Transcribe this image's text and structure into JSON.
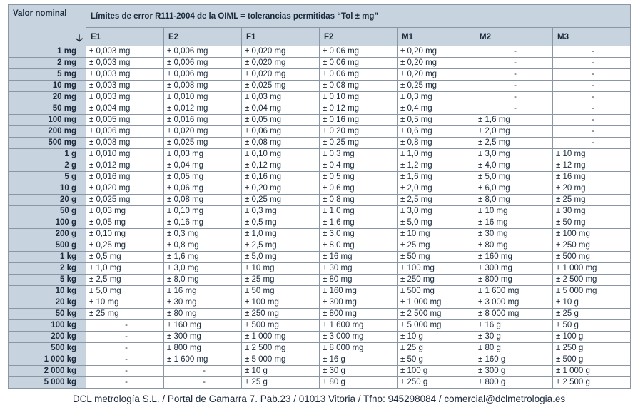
{
  "header": {
    "nominal_label": "Valor nominal",
    "title": "Límites de error R111-2004 de la OIML = tolerancias permitidas “Tol ± mg”",
    "arrow_icon": "arrow-down-icon",
    "classes": [
      "E1",
      "E2",
      "F1",
      "F2",
      "M1",
      "M2",
      "M3"
    ]
  },
  "rows": [
    {
      "nominal": "1 mg",
      "values": [
        "± 0,003 mg",
        "± 0,006 mg",
        "± 0,020 mg",
        "± 0,06 mg",
        "± 0,20 mg",
        "-",
        "-"
      ]
    },
    {
      "nominal": "2 mg",
      "values": [
        "± 0,003 mg",
        "± 0,006 mg",
        "± 0,020 mg",
        "± 0,06 mg",
        "± 0,20 mg",
        "-",
        "-"
      ]
    },
    {
      "nominal": "5 mg",
      "values": [
        "± 0,003 mg",
        "± 0,006 mg",
        "± 0,020 mg",
        "± 0,06 mg",
        "± 0,20 mg",
        "-",
        "-"
      ]
    },
    {
      "nominal": "10 mg",
      "values": [
        "± 0,003 mg",
        "± 0,008 mg",
        "± 0,025 mg",
        "± 0,08 mg",
        "± 0,25 mg",
        "-",
        "-"
      ]
    },
    {
      "nominal": "20 mg",
      "values": [
        "± 0,003 mg",
        "± 0,010 mg",
        "± 0,03 mg",
        "± 0,10 mg",
        "± 0,3 mg",
        "-",
        "-"
      ]
    },
    {
      "nominal": "50 mg",
      "values": [
        "± 0,004 mg",
        "± 0,012 mg",
        "± 0,04 mg",
        "± 0,12 mg",
        "± 0,4 mg",
        "-",
        "-"
      ]
    },
    {
      "nominal": "100 mg",
      "values": [
        "± 0,005 mg",
        "± 0,016 mg",
        "± 0,05 mg",
        "± 0,16 mg",
        "± 0,5 mg",
        "± 1,6 mg",
        "-"
      ]
    },
    {
      "nominal": "200 mg",
      "values": [
        "± 0,006 mg",
        "± 0,020 mg",
        "± 0,06 mg",
        "± 0,20 mg",
        "± 0,6 mg",
        "± 2,0 mg",
        "-"
      ]
    },
    {
      "nominal": "500 mg",
      "values": [
        "± 0,008 mg",
        "± 0,025 mg",
        "± 0,08 mg",
        "± 0,25 mg",
        "± 0,8 mg",
        "± 2,5 mg",
        "-"
      ]
    },
    {
      "nominal": "1 g",
      "values": [
        "± 0,010 mg",
        "± 0,03 mg",
        "± 0,10 mg",
        "± 0,3 mg",
        "± 1,0 mg",
        "± 3,0 mg",
        "± 10 mg"
      ]
    },
    {
      "nominal": "2 g",
      "values": [
        "± 0,012 mg",
        "± 0,04 mg",
        "± 0,12 mg",
        "± 0,4 mg",
        "± 1,2 mg",
        "± 4,0 mg",
        "± 12 mg"
      ]
    },
    {
      "nominal": "5 g",
      "values": [
        "± 0,016 mg",
        "± 0,05 mg",
        "± 0,16 mg",
        "± 0,5 mg",
        "± 1,6 mg",
        "± 5,0 mg",
        "± 16 mg"
      ]
    },
    {
      "nominal": "10 g",
      "values": [
        "± 0,020 mg",
        "± 0,06 mg",
        "± 0,20 mg",
        "± 0,6 mg",
        "± 2,0 mg",
        "± 6,0 mg",
        "± 20 mg"
      ]
    },
    {
      "nominal": "20 g",
      "values": [
        "± 0,025 mg",
        "± 0,08 mg",
        "± 0,25 mg",
        "± 0,8 mg",
        "± 2,5 mg",
        "± 8,0 mg",
        "± 25 mg"
      ]
    },
    {
      "nominal": "50 g",
      "values": [
        "± 0,03 mg",
        "± 0,10 mg",
        "± 0,3 mg",
        "± 1,0 mg",
        "± 3,0 mg",
        "± 10 mg",
        "± 30 mg"
      ]
    },
    {
      "nominal": "100 g",
      "values": [
        "± 0,05 mg",
        "± 0,16 mg",
        "± 0,5 mg",
        "± 1,6 mg",
        "± 5,0 mg",
        "± 16 mg",
        "± 50 mg"
      ]
    },
    {
      "nominal": "200 g",
      "values": [
        "± 0,10 mg",
        "± 0,3 mg",
        "± 1,0 mg",
        "± 3,0 mg",
        "± 10 mg",
        "± 30 mg",
        "± 100 mg"
      ]
    },
    {
      "nominal": "500 g",
      "values": [
        "± 0,25 mg",
        "± 0,8 mg",
        "± 2,5 mg",
        "± 8,0 mg",
        "± 25 mg",
        "± 80 mg",
        "± 250 mg"
      ]
    },
    {
      "nominal": "1 kg",
      "values": [
        "± 0,5 mg",
        "± 1,6 mg",
        "± 5,0 mg",
        "± 16 mg",
        "± 50 mg",
        "± 160 mg",
        "± 500 mg"
      ]
    },
    {
      "nominal": "2 kg",
      "values": [
        "± 1,0 mg",
        "± 3,0 mg",
        "± 10 mg",
        "± 30 mg",
        "± 100 mg",
        "± 300 mg",
        "± 1 000 mg"
      ]
    },
    {
      "nominal": "5 kg",
      "values": [
        "± 2,5 mg",
        "± 8,0 mg",
        "± 25 mg",
        "± 80 mg",
        "± 250 mg",
        "± 800 mg",
        "± 2 500 mg"
      ]
    },
    {
      "nominal": "10 kg",
      "values": [
        "± 5,0 mg",
        "± 16 mg",
        "± 50 mg",
        "± 160 mg",
        "± 500 mg",
        "± 1 600 mg",
        "± 5 000 mg"
      ]
    },
    {
      "nominal": "20 kg",
      "values": [
        "± 10 mg",
        "± 30 mg",
        "± 100 mg",
        "± 300 mg",
        "± 1 000 mg",
        "± 3 000 mg",
        "± 10 g"
      ]
    },
    {
      "nominal": "50 kg",
      "values": [
        "± 25 mg",
        "± 80 mg",
        "± 250 mg",
        "± 800 mg",
        "± 2 500 mg",
        "± 8 000 mg",
        "± 25 g"
      ]
    },
    {
      "nominal": "100 kg",
      "values": [
        "-",
        "± 160 mg",
        "± 500 mg",
        "± 1 600 mg",
        "± 5 000 mg",
        "± 16 g",
        "± 50 g"
      ]
    },
    {
      "nominal": "200 kg",
      "values": [
        "-",
        "± 300 mg",
        "± 1 000 mg",
        "± 3 000 mg",
        "± 10 g",
        "± 30 g",
        "± 100 g"
      ]
    },
    {
      "nominal": "500 kg",
      "values": [
        "-",
        "± 800 mg",
        "± 2 500 mg",
        "± 8 000 mg",
        "± 25 g",
        "± 80 g",
        "± 250 g"
      ]
    },
    {
      "nominal": "1 000 kg",
      "values": [
        "-",
        "± 1 600 mg",
        "± 5 000 mg",
        "± 16 g",
        "± 50 g",
        "± 160 g",
        "± 500 g"
      ]
    },
    {
      "nominal": "2 000 kg",
      "values": [
        "-",
        "-",
        "± 10 g",
        "± 30 g",
        "± 100 g",
        "± 300 g",
        "± 1 000 g"
      ]
    },
    {
      "nominal": "5 000 kg",
      "values": [
        "-",
        "-",
        "± 25 g",
        "± 80 g",
        "± 250 g",
        "± 800 g",
        "± 2 500 g"
      ]
    }
  ],
  "footer": {
    "text": "DCL metrología S.L. / Portal de Gamarra 7. Pab.23 / 01013 Vitoria / Tfno: 945298084 / comercial@dclmetrologia.es"
  }
}
